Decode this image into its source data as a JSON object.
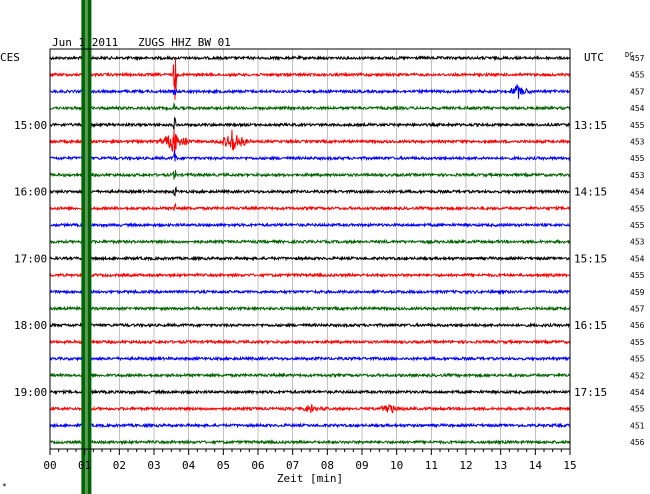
{
  "chart_data": {
    "type": "line",
    "title": "Jun 1 2011   ZUGS HHZ BW 01",
    "left_timezone": "CES",
    "right_timezone": "UTC",
    "dc_label": "DC",
    "xlabel": "Zeit [min]",
    "xlim": [
      0,
      15
    ],
    "x_tick_labels": [
      "00",
      "01",
      "02",
      "03",
      "04",
      "05",
      "06",
      "07",
      "08",
      "09",
      "10",
      "11",
      "12",
      "13",
      "14",
      "15"
    ],
    "grid": true,
    "trace_count": 24,
    "trace_colors": [
      "#000000",
      "#ff0000",
      "#0000ff",
      "#006400"
    ],
    "left_hour_labels": [
      {
        "trace": 4,
        "label": "15:00"
      },
      {
        "trace": 8,
        "label": "16:00"
      },
      {
        "trace": 12,
        "label": "17:00"
      },
      {
        "trace": 16,
        "label": "18:00"
      },
      {
        "trace": 20,
        "label": "19:00"
      }
    ],
    "right_hour_labels": [
      {
        "trace": 4,
        "label": "13:15"
      },
      {
        "trace": 8,
        "label": "14:15"
      },
      {
        "trace": 12,
        "label": "15:15"
      },
      {
        "trace": 16,
        "label": "16:15"
      },
      {
        "trace": 20,
        "label": "17:15"
      }
    ],
    "dc_values": [
      "457",
      "455",
      "457",
      "454",
      "455",
      "453",
      "455",
      "453",
      "454",
      "455",
      "455",
      "453",
      "454",
      "455",
      "459",
      "457",
      "456",
      "455",
      "455",
      "452",
      "454",
      "455",
      "451",
      "456"
    ],
    "events": [
      {
        "trace": 1,
        "minute": 3.6,
        "type": "spike",
        "amplitude": 40
      },
      {
        "trace": 2,
        "minute": 3.6,
        "type": "spike",
        "amplitude": 6
      },
      {
        "trace": 3,
        "minute": 3.6,
        "type": "spike",
        "amplitude": 6
      },
      {
        "trace": 4,
        "minute": 3.6,
        "type": "spike",
        "amplitude": 8
      },
      {
        "trace": 5,
        "minute": 3.6,
        "type": "burst",
        "amplitude": 16
      },
      {
        "trace": 5,
        "minute": 5.3,
        "type": "burst",
        "amplitude": 14
      },
      {
        "trace": 6,
        "minute": 3.6,
        "type": "spike",
        "amplitude": 10
      },
      {
        "trace": 7,
        "minute": 3.6,
        "type": "spike",
        "amplitude": 10
      },
      {
        "trace": 8,
        "minute": 3.6,
        "type": "spike",
        "amplitude": 10
      },
      {
        "trace": 9,
        "minute": 3.6,
        "type": "spike",
        "amplitude": 12
      },
      {
        "trace": 2,
        "minute": 13.5,
        "type": "burst",
        "amplitude": 7
      },
      {
        "trace": 21,
        "minute": 7.5,
        "type": "burst",
        "amplitude": 4
      },
      {
        "trace": 21,
        "minute": 9.8,
        "type": "burst",
        "amplitude": 6
      }
    ],
    "marker_band": {
      "minute": 1.05,
      "color": "#006400"
    }
  },
  "corner_mark": "*"
}
